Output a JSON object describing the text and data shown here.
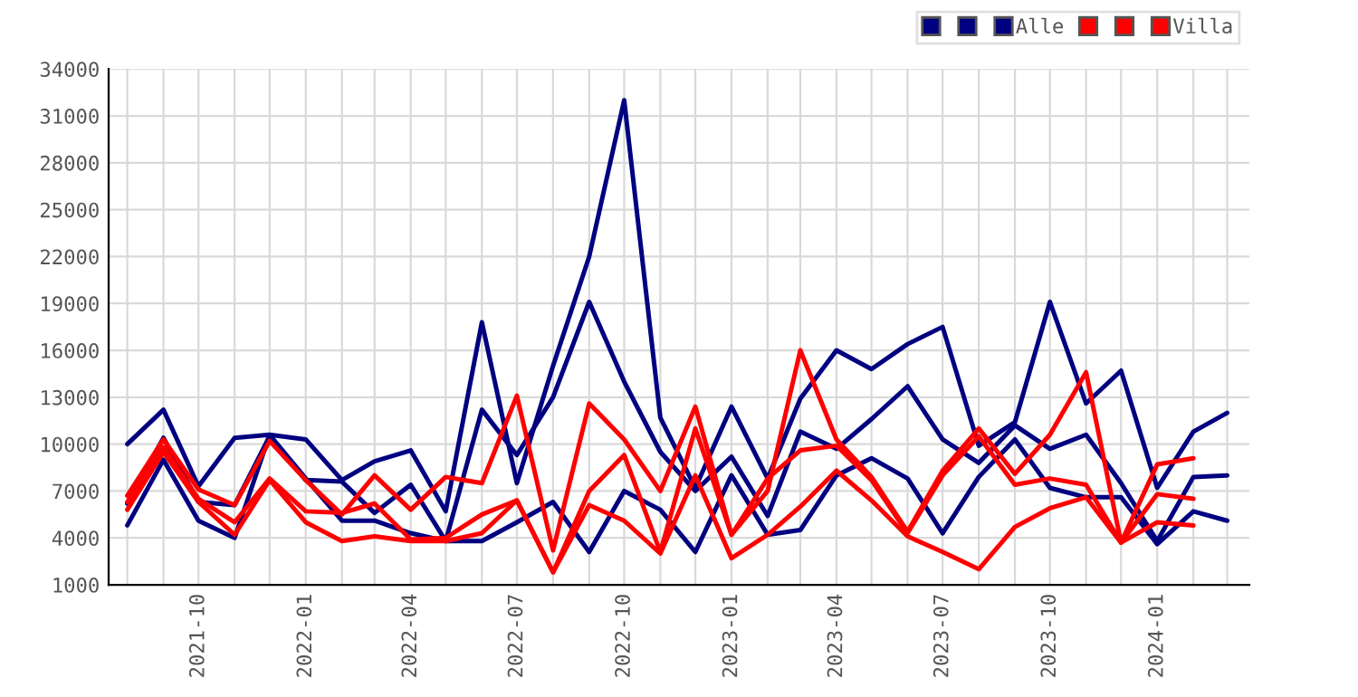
{
  "chart_data": {
    "type": "line",
    "x": [
      "2021-08",
      "2021-09",
      "2021-10",
      "2021-11",
      "2021-12",
      "2022-01",
      "2022-02",
      "2022-03",
      "2022-04",
      "2022-05",
      "2022-06",
      "2022-07",
      "2022-08",
      "2022-09",
      "2022-10",
      "2022-11",
      "2022-12",
      "2023-01",
      "2023-02",
      "2023-03",
      "2023-04",
      "2023-05",
      "2023-06",
      "2023-07",
      "2023-08",
      "2023-09",
      "2023-10",
      "2023-11",
      "2023-12",
      "2024-01",
      "2024-02",
      "2024-03"
    ],
    "series": [
      {
        "color": "#000080",
        "values": [
          10000,
          12200,
          7300,
          10400,
          10600,
          10300,
          7700,
          8900,
          9600,
          5700,
          17800,
          7500,
          15000,
          22000,
          32000,
          11700,
          7200,
          12400,
          7800,
          12900,
          16000,
          14800,
          16400,
          17500,
          9900,
          11400,
          19100,
          12600,
          14700,
          7200,
          10800,
          12000
        ]
      },
      {
        "color": "#000080",
        "values": [
          6200,
          10400,
          6300,
          6100,
          10500,
          7700,
          7600,
          5600,
          7400,
          3800,
          12200,
          9300,
          13000,
          19100,
          14000,
          9500,
          7000,
          9200,
          5400,
          10800,
          9700,
          11600,
          13700,
          10300,
          8800,
          11200,
          9700,
          10600,
          7500,
          3800,
          7900,
          8000
        ]
      },
      {
        "name": "Alle",
        "color": "#000080",
        "values": [
          4800,
          9000,
          5100,
          4000,
          10600,
          7800,
          5100,
          5100,
          4300,
          3800,
          3800,
          5000,
          6300,
          3100,
          7000,
          5800,
          3100,
          8000,
          4200,
          4500,
          8000,
          9100,
          7800,
          4300,
          7900,
          10300,
          7200,
          6600,
          6600,
          3600,
          5700,
          5100
        ]
      },
      {
        "color": "#ff0000",
        "values": [
          6700,
          10300,
          7100,
          6100,
          10200,
          7700,
          5500,
          8000,
          5800,
          7900,
          7500,
          13100,
          3200,
          12600,
          10300,
          7000,
          12400,
          4200,
          7000,
          16000,
          10300,
          7900,
          4400,
          8300,
          11000,
          8100,
          10600,
          14600,
          3700,
          8700,
          9100,
          null
        ]
      },
      {
        "color": "#ff0000",
        "values": [
          6300,
          9800,
          6500,
          5000,
          7800,
          5700,
          5600,
          6200,
          3900,
          4000,
          5500,
          6400,
          1800,
          7000,
          9300,
          3100,
          11000,
          4200,
          7800,
          9600,
          9900,
          7700,
          4300,
          8000,
          10500,
          7400,
          7800,
          7400,
          3700,
          6800,
          6500,
          null
        ]
      },
      {
        "name": "Villa",
        "color": "#ff0000",
        "values": [
          5800,
          9500,
          6300,
          4200,
          7700,
          5000,
          3800,
          4100,
          3800,
          3800,
          4300,
          6400,
          1800,
          6100,
          5100,
          3000,
          8000,
          2700,
          4200,
          6000,
          8300,
          6400,
          4100,
          3100,
          2000,
          4700,
          5900,
          6600,
          3700,
          5000,
          4800,
          null
        ]
      }
    ],
    "xlim": [
      "2021-07-16",
      "2024-03-20"
    ],
    "xticks": [
      {
        "value": "2021-08",
        "label": null
      },
      {
        "value": "2021-09",
        "label": null
      },
      {
        "value": "2021-10",
        "label": "2021-10"
      },
      {
        "value": "2021-11",
        "label": null
      },
      {
        "value": "2021-12",
        "label": null
      },
      {
        "value": "2022-01",
        "label": "2022-01"
      },
      {
        "value": "2022-02",
        "label": null
      },
      {
        "value": "2022-03",
        "label": null
      },
      {
        "value": "2022-04",
        "label": "2022-04"
      },
      {
        "value": "2022-05",
        "label": null
      },
      {
        "value": "2022-06",
        "label": null
      },
      {
        "value": "2022-07",
        "label": "2022-07"
      },
      {
        "value": "2022-08",
        "label": null
      },
      {
        "value": "2022-09",
        "label": null
      },
      {
        "value": "2022-10",
        "label": "2022-10"
      },
      {
        "value": "2022-11",
        "label": null
      },
      {
        "value": "2022-12",
        "label": null
      },
      {
        "value": "2023-01",
        "label": "2023-01"
      },
      {
        "value": "2023-02",
        "label": null
      },
      {
        "value": "2023-03",
        "label": null
      },
      {
        "value": "2023-04",
        "label": "2023-04"
      },
      {
        "value": "2023-05",
        "label": null
      },
      {
        "value": "2023-06",
        "label": null
      },
      {
        "value": "2023-07",
        "label": "2023-07"
      },
      {
        "value": "2023-08",
        "label": null
      },
      {
        "value": "2023-09",
        "label": null
      },
      {
        "value": "2023-10",
        "label": "2023-10"
      },
      {
        "value": "2023-11",
        "label": null
      },
      {
        "value": "2023-12",
        "label": null
      },
      {
        "value": "2024-01",
        "label": "2024-01"
      },
      {
        "value": "2024-02",
        "label": null
      },
      {
        "value": "2024-03",
        "label": null
      }
    ],
    "ylim": [
      1000,
      34000
    ],
    "yticks": [
      1000,
      4000,
      7000,
      10000,
      13000,
      16000,
      19000,
      22000,
      25000,
      28000,
      31000,
      34000
    ],
    "grid": true,
    "legend": "top right",
    "line_style": "solid",
    "marker": "none"
  }
}
